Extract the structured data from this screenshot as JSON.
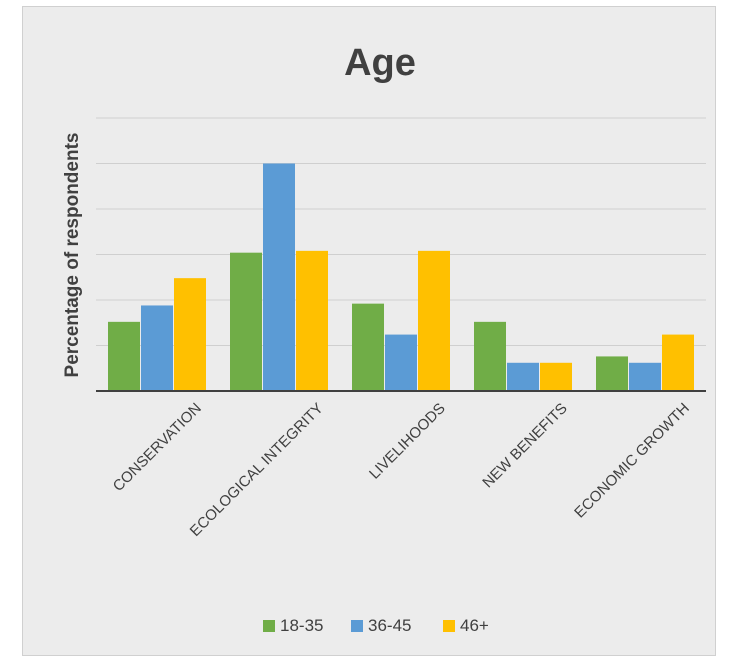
{
  "chart_data": {
    "type": "bar",
    "title": "Age",
    "xlabel": "",
    "ylabel": "Percentage of respondents",
    "categories": [
      "CONSERVATION",
      "ECOLOGICAL INTEGRITY",
      "LIVELIHOODS",
      "NEW BENEFITS",
      "ECONOMIC GROWTH"
    ],
    "series": [
      {
        "name": "18-35",
        "color": "#70ad47",
        "values": [
          7.6,
          15.2,
          9.6,
          7.6,
          3.8
        ]
      },
      {
        "name": "36-45",
        "color": "#5b9bd5",
        "values": [
          9.4,
          25.0,
          6.2,
          3.1,
          3.1
        ]
      },
      {
        "name": "46+",
        "color": "#ffc000",
        "values": [
          12.4,
          15.4,
          15.4,
          3.1,
          6.2
        ]
      }
    ],
    "ylim": [
      0,
      30
    ],
    "grid": true,
    "legend": "bottom",
    "y_tick_labels_shown": false
  }
}
